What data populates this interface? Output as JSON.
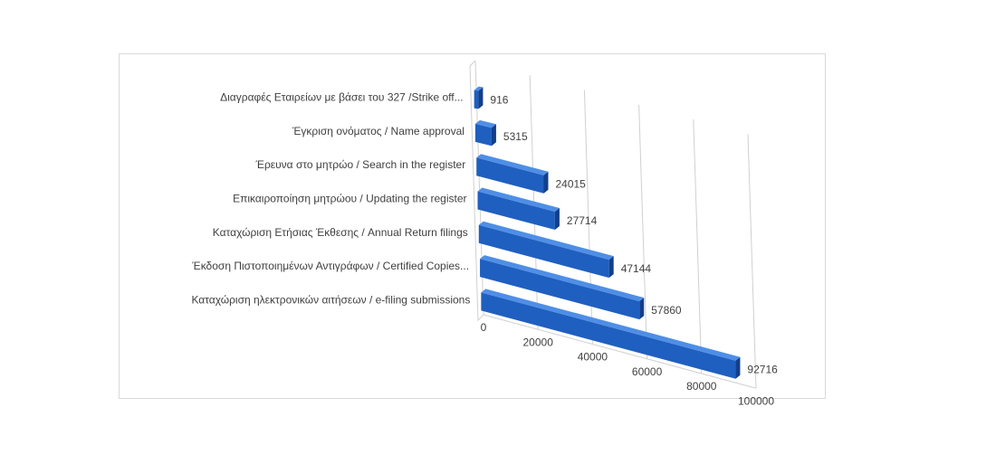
{
  "chart_data": {
    "type": "bar",
    "orientation": "horizontal",
    "style": "3d-perspective",
    "categories": [
      "Διαγραφές Εταιρείων  με  βάσει του 327 /Strike off...",
      "Έγκριση ονόματος / Name approval",
      "Έρευνα στο μητρώο / Search in the register",
      "Επικαιροποίηση μητρώου / Updating the register",
      "Καταχώριση Ετήσιας Έκθεσης / Annual Return filings",
      "Έκδοση Πιστοποιημένων Αντιγράφων / Certified Copies...",
      "Καταχώριση ηλεκτρονικών αιτήσεων / e-filing submissions"
    ],
    "values": [
      916,
      5315,
      24015,
      27714,
      47144,
      57860,
      92716
    ],
    "value_labels": [
      "916",
      "5315",
      "24015",
      "27714",
      "47144",
      "57860",
      "92716"
    ],
    "x_ticks": [
      "0",
      "20000",
      "40000",
      "60000",
      "80000",
      "100000"
    ],
    "xlim": [
      0,
      100000
    ],
    "title": "",
    "xlabel": "",
    "ylabel": "",
    "grid": true,
    "legend": "none",
    "colors": {
      "bar_front": "#1f5fc0",
      "bar_top": "#4f8ee6",
      "bar_end": "#123f8a",
      "grid": "#d0d0d0",
      "text": "#404040"
    }
  }
}
